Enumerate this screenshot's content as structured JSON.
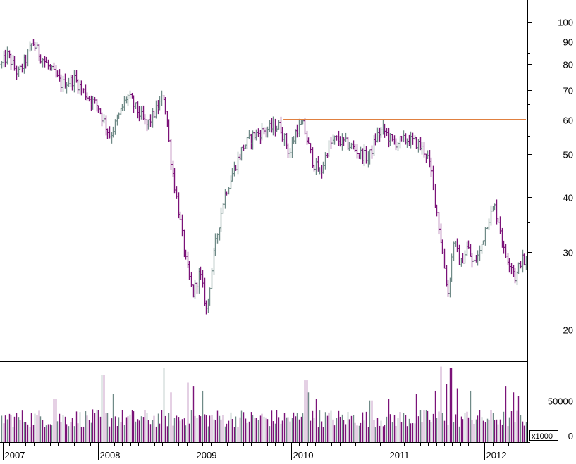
{
  "chart_data": [
    {
      "type": "ohlc",
      "panel": "price",
      "y_scale": "log",
      "ylim": [
        17,
        112
      ],
      "xlim": [
        2007.0,
        2012.43
      ],
      "x_tick_labels": [
        "2007",
        "2008",
        "2009",
        "2010",
        "2011",
        "2012"
      ],
      "x_ticks": [
        2007,
        2008,
        2009,
        2010,
        2011,
        2012
      ],
      "y_tick_labels": [
        "100",
        "90",
        "80",
        "70",
        "60",
        "50",
        "40",
        "30",
        "20"
      ],
      "y_ticks": [
        100,
        90,
        80,
        70,
        60,
        50,
        40,
        30,
        20
      ],
      "up_color": "#6f8a87",
      "down_color": "#7b1278",
      "reference_line": {
        "value": 60,
        "x_start": 2009.92,
        "x_end": 2012.43,
        "color": "#e08040"
      },
      "close_anchors": [
        [
          2007.0,
          80
        ],
        [
          2007.06,
          84
        ],
        [
          2007.17,
          76
        ],
        [
          2007.25,
          82
        ],
        [
          2007.32,
          90
        ],
        [
          2007.38,
          85
        ],
        [
          2007.5,
          78
        ],
        [
          2007.62,
          72
        ],
        [
          2007.75,
          74
        ],
        [
          2007.88,
          68
        ],
        [
          2008.0,
          64
        ],
        [
          2008.12,
          55
        ],
        [
          2008.2,
          60
        ],
        [
          2008.3,
          68
        ],
        [
          2008.4,
          63
        ],
        [
          2008.5,
          58
        ],
        [
          2008.6,
          63
        ],
        [
          2008.68,
          68
        ],
        [
          2008.76,
          47
        ],
        [
          2008.84,
          36
        ],
        [
          2008.9,
          29
        ],
        [
          2008.98,
          24
        ],
        [
          2009.05,
          27
        ],
        [
          2009.12,
          22
        ],
        [
          2009.2,
          30
        ],
        [
          2009.3,
          40
        ],
        [
          2009.4,
          46
        ],
        [
          2009.5,
          52
        ],
        [
          2009.6,
          55
        ],
        [
          2009.75,
          57
        ],
        [
          2009.88,
          58
        ],
        [
          2009.98,
          50
        ],
        [
          2010.05,
          57
        ],
        [
          2010.12,
          58
        ],
        [
          2010.22,
          48
        ],
        [
          2010.3,
          45
        ],
        [
          2010.38,
          52
        ],
        [
          2010.45,
          54
        ],
        [
          2010.55,
          53
        ],
        [
          2010.62,
          52
        ],
        [
          2010.72,
          50
        ],
        [
          2010.8,
          49
        ],
        [
          2010.88,
          55
        ],
        [
          2010.95,
          57
        ],
        [
          2011.05,
          53
        ],
        [
          2011.2,
          54
        ],
        [
          2011.3,
          53
        ],
        [
          2011.4,
          50
        ],
        [
          2011.45,
          45
        ],
        [
          2011.52,
          35
        ],
        [
          2011.58,
          28
        ],
        [
          2011.62,
          24
        ],
        [
          2011.68,
          32
        ],
        [
          2011.75,
          28
        ],
        [
          2011.82,
          31
        ],
        [
          2011.88,
          28
        ],
        [
          2011.95,
          30
        ],
        [
          2012.02,
          35
        ],
        [
          2012.1,
          38
        ],
        [
          2012.15,
          35
        ],
        [
          2012.2,
          30
        ],
        [
          2012.28,
          28
        ],
        [
          2012.32,
          26
        ],
        [
          2012.38,
          29
        ],
        [
          2012.43,
          28
        ]
      ]
    },
    {
      "type": "bar",
      "panel": "volume",
      "ylim": [
        0,
        96000
      ],
      "y_tick_labels": [
        "50000",
        "0"
      ],
      "y_ticks": [
        50000,
        0
      ],
      "multiplier_label": "x1000",
      "typical_volume": 30000,
      "volume_spikes": [
        [
          2007.55,
          52000
        ],
        [
          2008.05,
          82000
        ],
        [
          2008.15,
          58000
        ],
        [
          2008.68,
          90000
        ],
        [
          2008.75,
          60000
        ],
        [
          2008.92,
          72000
        ],
        [
          2008.98,
          68000
        ],
        [
          2009.08,
          62000
        ],
        [
          2010.15,
          75000
        ],
        [
          2010.18,
          60000
        ],
        [
          2010.25,
          52000
        ],
        [
          2010.82,
          50000
        ],
        [
          2011.0,
          52000
        ],
        [
          2011.3,
          58000
        ],
        [
          2011.48,
          62000
        ],
        [
          2011.55,
          92000
        ],
        [
          2011.6,
          70000
        ],
        [
          2011.65,
          90000
        ],
        [
          2011.72,
          65000
        ],
        [
          2011.85,
          62000
        ],
        [
          2012.22,
          68000
        ],
        [
          2012.3,
          60000
        ],
        [
          2012.35,
          55000
        ]
      ]
    }
  ]
}
